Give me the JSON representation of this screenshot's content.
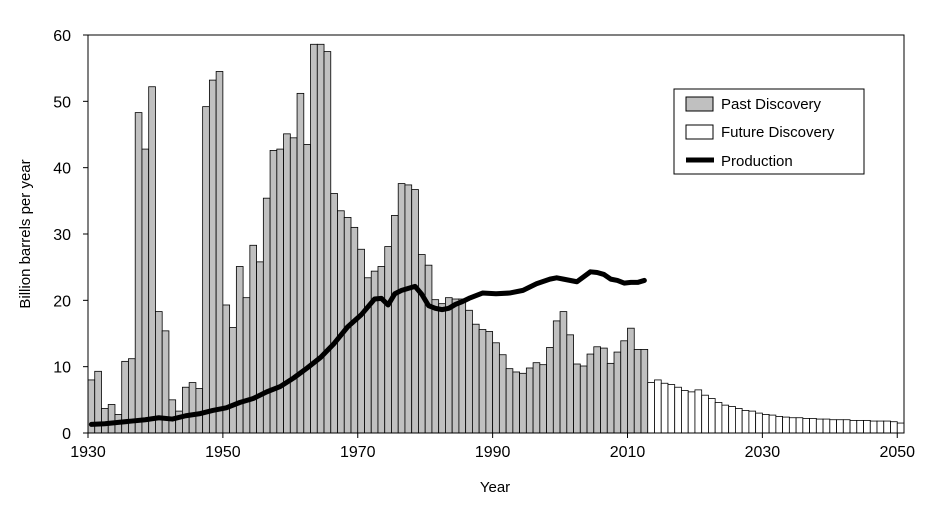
{
  "chart_data": {
    "type": "bar",
    "title": "",
    "xlabel": "Year",
    "ylabel": "Billion barrels per year",
    "xlim": [
      1930,
      2051
    ],
    "ylim": [
      0,
      60
    ],
    "x_ticks": [
      1930,
      1950,
      1970,
      1990,
      2010,
      2030,
      2050
    ],
    "y_ticks": [
      0,
      10,
      20,
      30,
      40,
      50,
      60
    ],
    "grid": false,
    "legend_placement": "top-right",
    "series": [
      {
        "name": "Past Discovery",
        "type": "bar",
        "color": "#c0c0c0",
        "x": [
          1930,
          1931,
          1932,
          1933,
          1934,
          1935,
          1936,
          1937,
          1938,
          1939,
          1940,
          1941,
          1942,
          1943,
          1944,
          1945,
          1946,
          1947,
          1948,
          1949,
          1950,
          1951,
          1952,
          1953,
          1954,
          1955,
          1956,
          1957,
          1958,
          1959,
          1960,
          1961,
          1962,
          1963,
          1964,
          1965,
          1966,
          1967,
          1968,
          1969,
          1970,
          1971,
          1972,
          1973,
          1974,
          1975,
          1976,
          1977,
          1978,
          1979,
          1980,
          1981,
          1982,
          1983,
          1984,
          1985,
          1986,
          1987,
          1988,
          1989,
          1990,
          1991,
          1992,
          1993,
          1994,
          1995,
          1996,
          1997,
          1998,
          1999,
          2000,
          2001,
          2002,
          2003,
          2004,
          2005,
          2006,
          2007,
          2008,
          2009,
          2010,
          2011,
          2012
        ],
        "values": [
          8.0,
          9.3,
          3.7,
          4.3,
          2.8,
          10.8,
          11.2,
          48.3,
          42.8,
          52.2,
          18.3,
          15.4,
          5.0,
          3.3,
          6.9,
          7.6,
          6.7,
          49.2,
          53.2,
          54.5,
          19.3,
          15.9,
          25.1,
          20.4,
          28.3,
          25.8,
          35.4,
          42.6,
          42.8,
          45.1,
          44.5,
          51.2,
          43.5,
          58.6,
          58.6,
          57.5,
          36.1,
          33.5,
          32.5,
          31.0,
          27.7,
          23.4,
          24.4,
          25.1,
          28.1,
          32.8,
          37.6,
          37.4,
          36.7,
          26.9,
          25.3,
          20.1,
          19.5,
          20.4,
          20.2,
          20.2,
          18.5,
          16.4,
          15.6,
          15.3,
          13.6,
          11.8,
          9.7,
          9.2,
          9.0,
          9.8,
          10.6,
          10.3,
          12.9,
          16.9,
          18.3,
          14.8,
          10.4,
          10.1,
          11.9,
          13.0,
          12.8,
          10.5,
          12.2,
          13.9,
          15.8,
          12.6,
          12.6
        ]
      },
      {
        "name": "Future Discovery",
        "type": "bar",
        "color": "#ffffff",
        "x": [
          2013,
          2014,
          2015,
          2016,
          2017,
          2018,
          2019,
          2020,
          2021,
          2022,
          2023,
          2024,
          2025,
          2026,
          2027,
          2028,
          2029,
          2030,
          2031,
          2032,
          2033,
          2034,
          2035,
          2036,
          2037,
          2038,
          2039,
          2040,
          2041,
          2042,
          2043,
          2044,
          2045,
          2046,
          2047,
          2048,
          2049,
          2050
        ],
        "values": [
          7.6,
          8.0,
          7.5,
          7.3,
          6.9,
          6.4,
          6.2,
          6.5,
          5.7,
          5.2,
          4.6,
          4.2,
          4.0,
          3.7,
          3.4,
          3.3,
          3.0,
          2.8,
          2.7,
          2.5,
          2.4,
          2.3,
          2.3,
          2.2,
          2.2,
          2.1,
          2.1,
          2.0,
          2.0,
          2.0,
          1.9,
          1.9,
          1.9,
          1.8,
          1.8,
          1.8,
          1.7,
          1.5
        ]
      },
      {
        "name": "Production",
        "type": "line",
        "color": "#000000",
        "x": [
          1930,
          1932,
          1934,
          1936,
          1938,
          1940,
          1942,
          1944,
          1946,
          1948,
          1950,
          1952,
          1954,
          1956,
          1958,
          1960,
          1962,
          1964,
          1966,
          1968,
          1970,
          1972,
          1973,
          1974,
          1975,
          1976,
          1977,
          1978,
          1979,
          1980,
          1981,
          1982,
          1983,
          1984,
          1985,
          1986,
          1988,
          1990,
          1992,
          1994,
          1996,
          1998,
          1999,
          2000,
          2002,
          2004,
          2005,
          2006,
          2007,
          2008,
          2009,
          2010,
          2011,
          2012
        ],
        "values": [
          1.3,
          1.4,
          1.6,
          1.8,
          2.0,
          2.3,
          2.1,
          2.6,
          2.9,
          3.4,
          3.8,
          4.6,
          5.2,
          6.2,
          7.0,
          8.3,
          9.8,
          11.4,
          13.5,
          16.0,
          17.8,
          20.2,
          20.3,
          19.3,
          21.0,
          21.5,
          21.8,
          22.1,
          20.9,
          19.2,
          18.8,
          18.6,
          18.8,
          19.4,
          19.8,
          20.3,
          21.1,
          21.0,
          21.1,
          21.5,
          22.5,
          23.2,
          23.4,
          23.2,
          22.8,
          24.3,
          24.2,
          23.9,
          23.2,
          23.0,
          22.6,
          22.7,
          22.7,
          23.0
        ]
      }
    ]
  }
}
